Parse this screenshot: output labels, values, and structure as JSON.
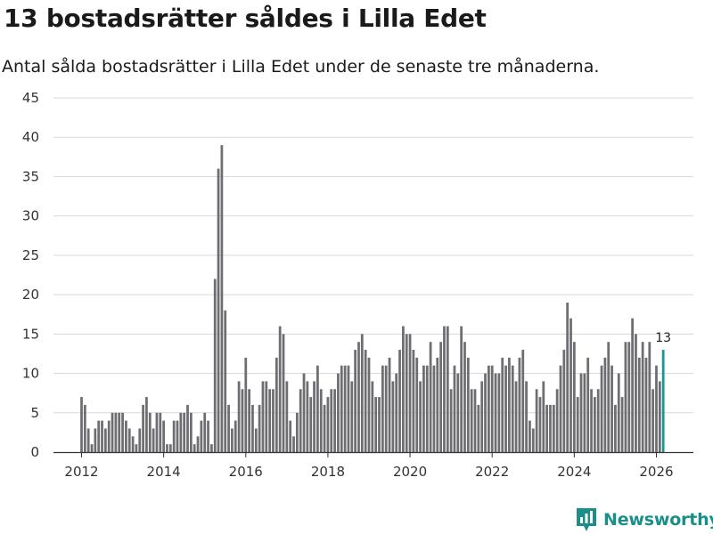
{
  "header": {
    "title": "13 bostadsrätter såldes i Lilla Edet",
    "subtitle": "Antal sålda bostadsrätter i Lilla Edet under de senaste tre månaderna."
  },
  "brand": {
    "name": "Newsworthy",
    "color": "#1a8f8a"
  },
  "colors": {
    "bar": "#6e6d72",
    "highlight": "#17978f",
    "grid": "#d9d9d9",
    "axis": "#333333"
  },
  "chart_data": {
    "type": "bar",
    "title": "13 bostadsrätter såldes i Lilla Edet",
    "subtitle": "Antal sålda bostadsrätter i Lilla Edet under de senaste tre månaderna.",
    "xlabel": "",
    "ylabel": "",
    "ylim": [
      0,
      45
    ],
    "y_ticks": [
      0,
      5,
      10,
      15,
      20,
      25,
      30,
      35,
      40,
      45
    ],
    "x_ticks": [
      "2012",
      "2014",
      "2016",
      "2018",
      "2020",
      "2022",
      "2024",
      "2026"
    ],
    "start": "2012-01",
    "frequency": "monthly",
    "grid": true,
    "values": [
      7,
      6,
      3,
      1,
      3,
      4,
      4,
      3,
      4,
      5,
      5,
      5,
      5,
      4,
      3,
      2,
      1,
      3,
      6,
      7,
      5,
      3,
      5,
      5,
      4,
      1,
      1,
      4,
      4,
      5,
      5,
      6,
      5,
      1,
      2,
      4,
      5,
      4,
      1,
      22,
      36,
      39,
      18,
      6,
      3,
      4,
      9,
      8,
      12,
      8,
      6,
      3,
      6,
      9,
      9,
      8,
      8,
      12,
      16,
      15,
      9,
      4,
      2,
      5,
      8,
      10,
      9,
      7,
      9,
      11,
      8,
      6,
      7,
      8,
      8,
      10,
      11,
      11,
      11,
      9,
      13,
      14,
      15,
      13,
      12,
      9,
      7,
      7,
      11,
      11,
      12,
      9,
      10,
      13,
      16,
      15,
      15,
      13,
      12,
      9,
      11,
      11,
      14,
      11,
      12,
      14,
      16,
      16,
      8,
      11,
      10,
      16,
      14,
      12,
      8,
      8,
      6,
      9,
      10,
      11,
      11,
      10,
      10,
      12,
      11,
      12,
      11,
      9,
      12,
      13,
      9,
      4,
      3,
      8,
      7,
      9,
      6,
      6,
      6,
      8,
      11,
      13,
      19,
      17,
      14,
      7,
      10,
      10,
      12,
      8,
      7,
      8,
      11,
      12,
      14,
      11,
      6,
      10,
      7,
      14,
      14,
      17,
      15,
      12,
      14,
      12,
      14,
      8,
      11,
      9,
      13
    ],
    "highlight_last": true,
    "annotations": [
      {
        "label": "13",
        "target": "last"
      }
    ]
  }
}
